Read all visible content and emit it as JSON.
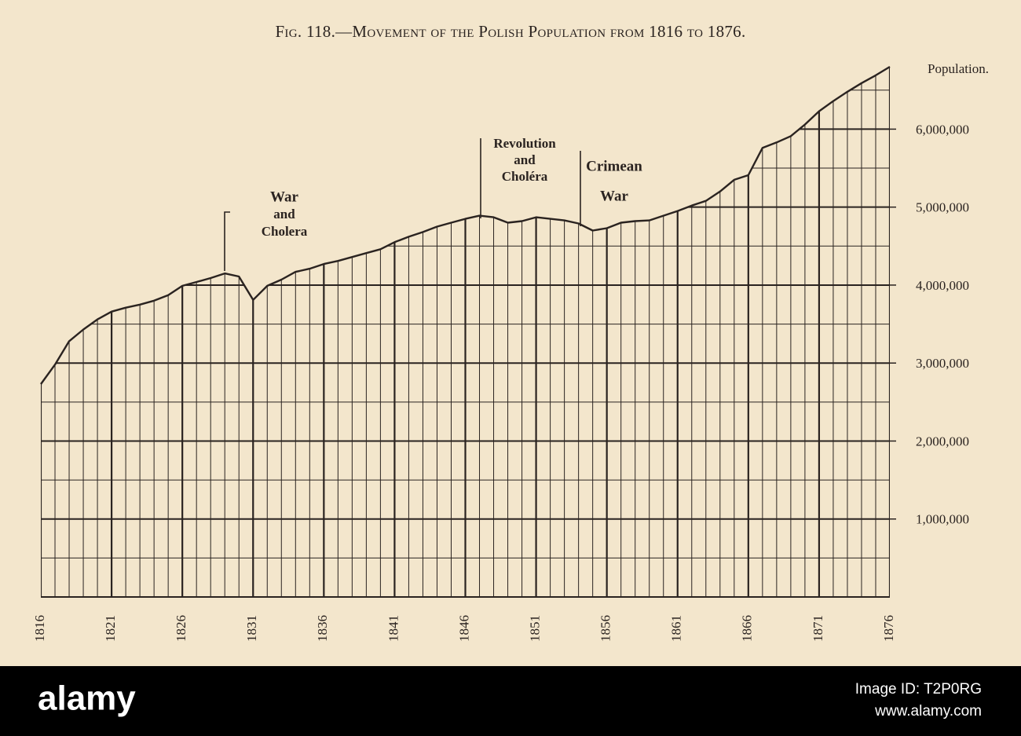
{
  "chart_data": {
    "type": "area-line",
    "title": "Fig. 118.—Movement of the Polish Population from 1816 to 1876.",
    "y_axis_label": "Population.",
    "x": [
      1816,
      1817,
      1818,
      1819,
      1820,
      1821,
      1822,
      1823,
      1824,
      1825,
      1826,
      1827,
      1828,
      1829,
      1830,
      1831,
      1832,
      1833,
      1834,
      1835,
      1836,
      1837,
      1838,
      1839,
      1840,
      1841,
      1842,
      1843,
      1844,
      1845,
      1846,
      1847,
      1848,
      1849,
      1850,
      1851,
      1852,
      1853,
      1854,
      1855,
      1856,
      1857,
      1858,
      1859,
      1860,
      1861,
      1862,
      1863,
      1864,
      1865,
      1866,
      1867,
      1868,
      1869,
      1870,
      1871,
      1872,
      1873,
      1874,
      1875,
      1876
    ],
    "values": [
      2730000,
      2980000,
      3280000,
      3430000,
      3560000,
      3660000,
      3710000,
      3750000,
      3800000,
      3870000,
      3990000,
      4040000,
      4090000,
      4150000,
      4110000,
      3810000,
      3990000,
      4070000,
      4170000,
      4210000,
      4270000,
      4310000,
      4360000,
      4410000,
      4460000,
      4550000,
      4620000,
      4680000,
      4750000,
      4800000,
      4850000,
      4890000,
      4870000,
      4800000,
      4820000,
      4870000,
      4850000,
      4830000,
      4790000,
      4700000,
      4730000,
      4800000,
      4820000,
      4830000,
      4890000,
      4950000,
      5020000,
      5080000,
      5200000,
      5350000,
      5410000,
      5760000,
      5830000,
      5910000,
      6060000,
      6230000,
      6360000,
      6480000,
      6590000,
      6690000,
      6800000
    ],
    "color": "#2a2320",
    "xlim": [
      1816,
      1876
    ],
    "xticks": [
      1816,
      1821,
      1826,
      1831,
      1836,
      1841,
      1846,
      1851,
      1856,
      1861,
      1866,
      1871,
      1876
    ],
    "ylim": [
      0,
      6800000
    ],
    "yticks": [
      {
        "value": 1000000,
        "label": "1,000,000"
      },
      {
        "value": 2000000,
        "label": "2,000,000"
      },
      {
        "value": 3000000,
        "label": "3,000,000"
      },
      {
        "value": 4000000,
        "label": "4,000,000"
      },
      {
        "value": 5000000,
        "label": "5,000,000"
      },
      {
        "value": 6000000,
        "label": "6,000,000"
      }
    ],
    "minor_yticks": [
      500000,
      1500000,
      2500000,
      3500000,
      4500000,
      5500000,
      6500000
    ],
    "grid": true,
    "annotations": [
      {
        "lines": [
          "War",
          "and",
          "Cholera"
        ]
      },
      {
        "lines": [
          "Revolution",
          "and",
          "Choléra"
        ]
      },
      {
        "lines": [
          "Crimean",
          "War"
        ]
      }
    ]
  },
  "footer": {
    "brand": "alamy",
    "image_id": "Image ID: T2P0RG",
    "url": "www.alamy.com"
  }
}
